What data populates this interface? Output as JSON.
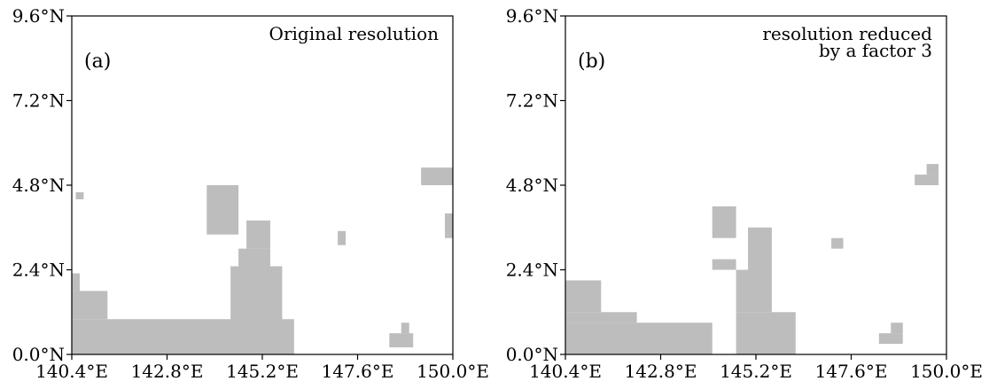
{
  "figure": {
    "panels": [
      {
        "label": "(a)",
        "note_lines": [
          "Original resolution"
        ],
        "x_ticks": [
          "140.4°E",
          "142.8°E",
          "145.2°E",
          "147.6°E",
          "150.0°E"
        ],
        "y_ticks": [
          "0.0°N",
          "2.4°N",
          "4.8°N",
          "7.2°N",
          "9.6°N"
        ]
      },
      {
        "label": "(b)",
        "note_lines": [
          "resolution reduced",
          "by a factor 3"
        ],
        "x_ticks": [
          "140.4°E",
          "142.8°E",
          "145.2°E",
          "147.6°E",
          "150.0°E"
        ],
        "y_ticks": [
          "0.0°N",
          "2.4°N",
          "4.8°N",
          "7.2°N",
          "9.6°N"
        ]
      }
    ],
    "colors": {
      "mask": "#bdbdbd",
      "background": "#ffffff",
      "frame": "#000000"
    }
  },
  "chart_data": [
    {
      "type": "heatmap",
      "xlim": [
        140.4,
        150.0
      ],
      "ylim": [
        0.0,
        9.6
      ],
      "x_unit": "°E",
      "y_unit": "°N",
      "cell_size_deg": 0.1,
      "regions": [
        {
          "lon": [
            140.4,
            145.0
          ],
          "lat": [
            0.0,
            1.0
          ]
        },
        {
          "lon": [
            140.4,
            141.3
          ],
          "lat": [
            1.0,
            1.8
          ]
        },
        {
          "lon": [
            140.4,
            140.6
          ],
          "lat": [
            1.8,
            2.3
          ]
        },
        {
          "lon": [
            144.4,
            145.7
          ],
          "lat": [
            0.0,
            2.5
          ]
        },
        {
          "lon": [
            145.0,
            146.0
          ],
          "lat": [
            0.0,
            1.0
          ]
        },
        {
          "lon": [
            144.6,
            145.4
          ],
          "lat": [
            2.5,
            3.0
          ]
        },
        {
          "lon": [
            144.8,
            145.4
          ],
          "lat": [
            3.0,
            3.8
          ]
        },
        {
          "lon": [
            143.8,
            144.6
          ],
          "lat": [
            3.4,
            4.8
          ]
        },
        {
          "lon": [
            147.1,
            147.3
          ],
          "lat": [
            3.1,
            3.5
          ]
        },
        {
          "lon": [
            149.2,
            150.0
          ],
          "lat": [
            4.8,
            5.3
          ]
        },
        {
          "lon": [
            149.8,
            150.0
          ],
          "lat": [
            3.3,
            4.0
          ]
        },
        {
          "lon": [
            148.4,
            149.0
          ],
          "lat": [
            0.2,
            0.6
          ]
        },
        {
          "lon": [
            148.7,
            148.9
          ],
          "lat": [
            0.6,
            0.9
          ]
        },
        {
          "lon": [
            140.5,
            140.7
          ],
          "lat": [
            4.4,
            4.6
          ]
        }
      ]
    },
    {
      "type": "heatmap",
      "xlim": [
        140.4,
        150.0
      ],
      "ylim": [
        0.0,
        9.6
      ],
      "x_unit": "°E",
      "y_unit": "°N",
      "cell_size_deg": 0.3,
      "regions": [
        {
          "lon": [
            140.4,
            144.1
          ],
          "lat": [
            0.0,
            0.9
          ]
        },
        {
          "lon": [
            140.4,
            142.2
          ],
          "lat": [
            0.9,
            1.2
          ]
        },
        {
          "lon": [
            140.4,
            141.3
          ],
          "lat": [
            1.2,
            2.1
          ]
        },
        {
          "lon": [
            144.7,
            146.2
          ],
          "lat": [
            0.0,
            1.2
          ]
        },
        {
          "lon": [
            144.7,
            145.6
          ],
          "lat": [
            1.2,
            2.4
          ]
        },
        {
          "lon": [
            145.0,
            145.6
          ],
          "lat": [
            2.4,
            3.6
          ]
        },
        {
          "lon": [
            144.1,
            144.7
          ],
          "lat": [
            2.4,
            2.7
          ]
        },
        {
          "lon": [
            144.1,
            144.7
          ],
          "lat": [
            3.3,
            4.2
          ]
        },
        {
          "lon": [
            147.1,
            147.4
          ],
          "lat": [
            3.0,
            3.3
          ]
        },
        {
          "lon": [
            149.2,
            149.8
          ],
          "lat": [
            4.8,
            5.1
          ]
        },
        {
          "lon": [
            149.5,
            149.8
          ],
          "lat": [
            5.1,
            5.4
          ]
        },
        {
          "lon": [
            148.3,
            148.9
          ],
          "lat": [
            0.3,
            0.6
          ]
        },
        {
          "lon": [
            148.6,
            148.9
          ],
          "lat": [
            0.6,
            0.9
          ]
        }
      ]
    }
  ]
}
